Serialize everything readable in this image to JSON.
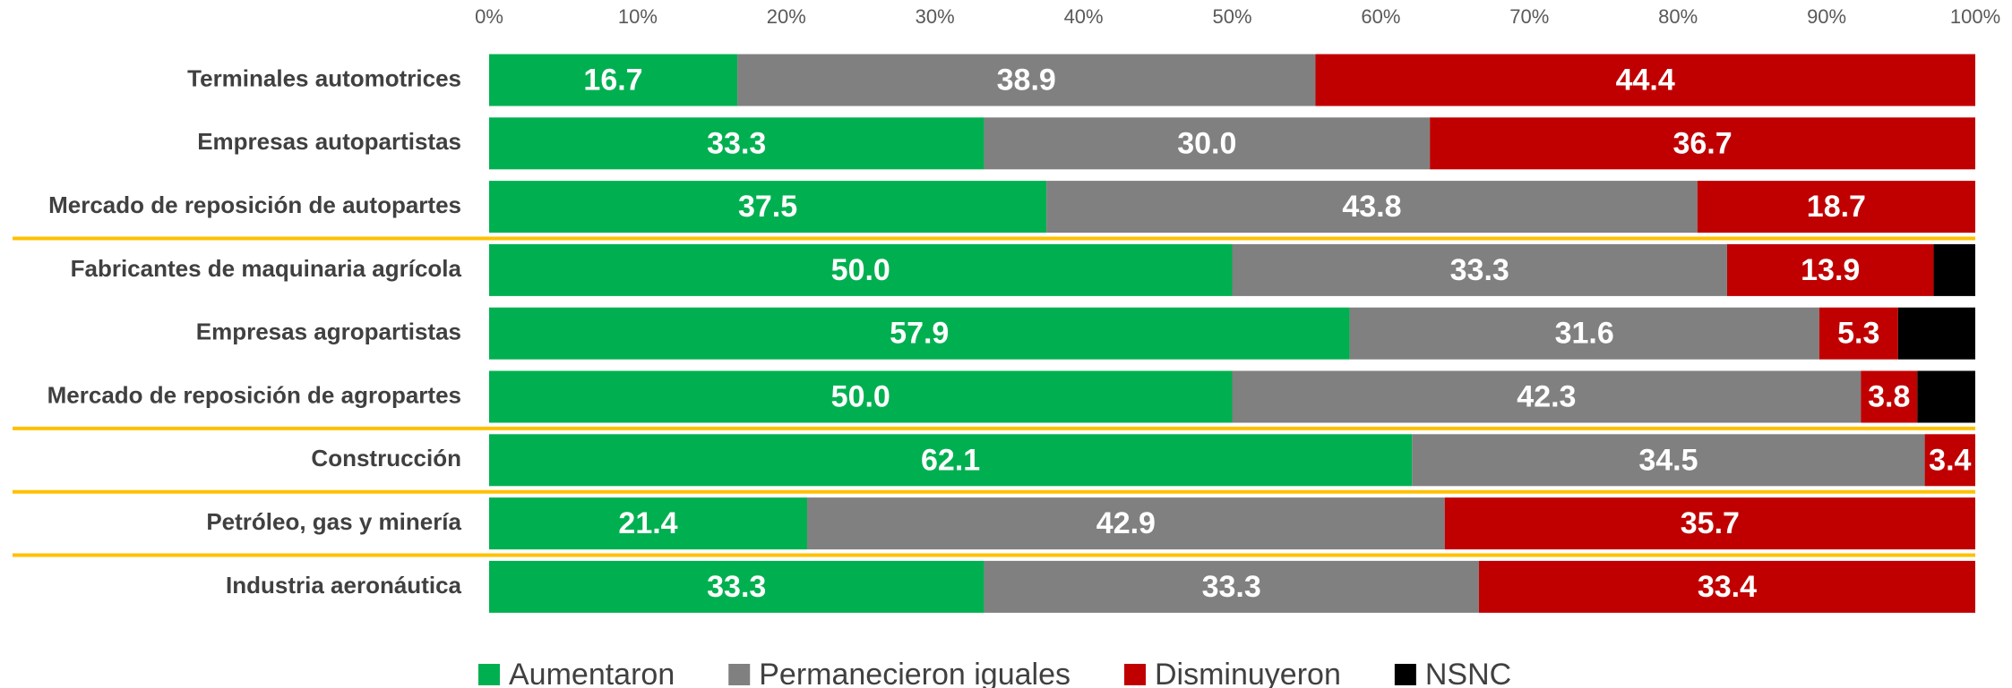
{
  "chart_data": {
    "type": "stacked-bar-horizontal",
    "categories": [
      "Terminales automotrices",
      "Empresas autopartistas",
      "Mercado de reposición de autopartes",
      "Fabricantes de maquinaria agrícola",
      "Empresas agropartistas",
      "Mercado de reposición de agropartes",
      "Construcción",
      "Petróleo, gas y minería",
      "Industria aeronáutica"
    ],
    "series": [
      {
        "name": "Aumentaron",
        "color": "#00b050",
        "values": [
          16.7,
          33.3,
          37.5,
          50,
          57.9,
          50,
          62.1,
          21.4,
          33.3
        ],
        "value_labels": [
          "16.7",
          "33.3",
          "37.5",
          "50.0",
          "57.9",
          "50.0",
          "62.1",
          "21.4",
          "33.3"
        ]
      },
      {
        "name": "Permanecieron iguales",
        "color": "#808080",
        "values": [
          38.9,
          30,
          43.8,
          33.3,
          31.6,
          42.3,
          34.5,
          42.9,
          33.3
        ],
        "value_labels": [
          "38.9",
          "30.0",
          "43.8",
          "33.3",
          "31.6",
          "42.3",
          "34.5",
          "42.9",
          "33.3"
        ]
      },
      {
        "name": "Disminuyeron",
        "color": "#c00000",
        "values": [
          44.4,
          36.7,
          18.7,
          13.9,
          5.3,
          3.8,
          3.4,
          35.7,
          33.4
        ],
        "value_labels": [
          "44.4",
          "36.7",
          "18.7",
          "13.9",
          "5.3",
          "3.8",
          "3.4",
          "35.7",
          "33.4"
        ]
      },
      {
        "name": "NSNC",
        "color": "#000000",
        "values": [
          0,
          0,
          0,
          2.8,
          5.2,
          3.9,
          0,
          0,
          0
        ]
      }
    ],
    "xlim": [
      0,
      100
    ],
    "xticks": [
      {
        "value": 0,
        "label": "0%"
      },
      {
        "value": 10,
        "label": "10%"
      },
      {
        "value": 20,
        "label": "20%"
      },
      {
        "value": 30,
        "label": "30%"
      },
      {
        "value": 40,
        "label": "40%"
      },
      {
        "value": 50,
        "label": "50%"
      },
      {
        "value": 60,
        "label": "60%"
      },
      {
        "value": 70,
        "label": "70%"
      },
      {
        "value": 80,
        "label": "80%"
      },
      {
        "value": 90,
        "label": "90%"
      },
      {
        "value": 100,
        "label": "100%"
      }
    ],
    "legend": "bottom"
  }
}
